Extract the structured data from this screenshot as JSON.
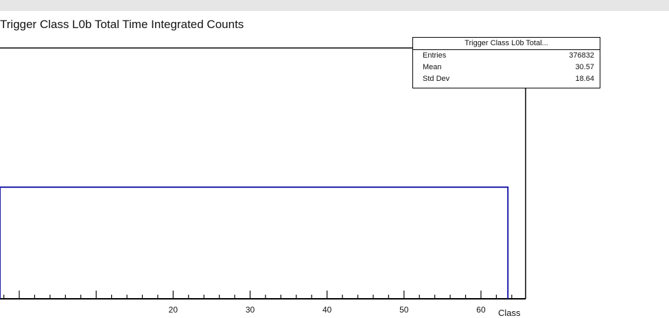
{
  "title": "Trigger Class L0b Total Time Integrated Counts",
  "statbox": {
    "header": "Trigger Class L0b Total...",
    "rows": [
      {
        "label": "Entries",
        "value": "376832"
      },
      {
        "label": "Mean",
        "value": "30.57"
      },
      {
        "label": "Std Dev",
        "value": "18.64"
      }
    ]
  },
  "chart_data": {
    "type": "bar",
    "title": "Trigger Class L0b Total Time Integrated Counts",
    "xlabel": "Class",
    "ylabel": "",
    "x_ticks": [
      20,
      30,
      40,
      50,
      60
    ],
    "x_tick_labels": [
      "20",
      "30",
      "40",
      "50",
      "60"
    ],
    "xlim": [
      -2.5,
      65.8
    ],
    "histogram": {
      "x_start": -2.5,
      "x_end": 63.5,
      "height_fraction": 0.445
    },
    "line_color": "#1a1aa6"
  }
}
